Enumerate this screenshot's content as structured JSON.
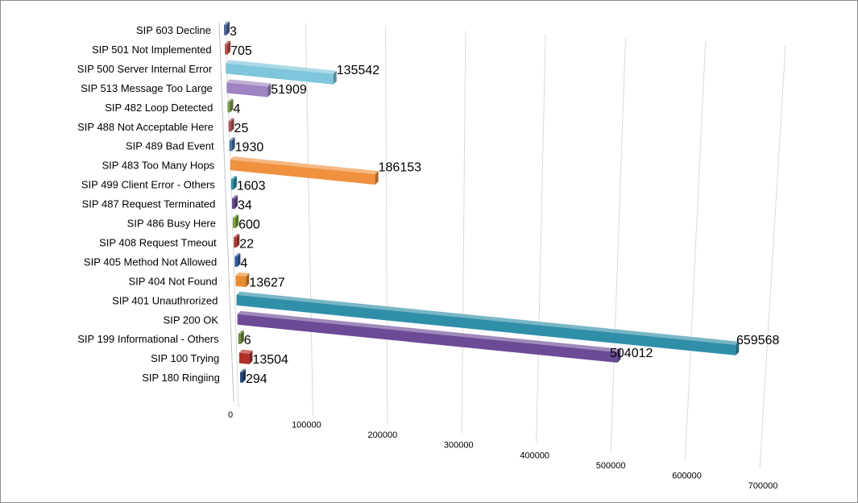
{
  "chart_data": {
    "type": "bar",
    "orientation": "horizontal",
    "style": "3d-perspective",
    "title": "",
    "xlabel": "",
    "ylabel": "",
    "xlim": [
      0,
      700000
    ],
    "x_ticks": [
      0,
      100000,
      200000,
      300000,
      400000,
      500000,
      600000,
      700000
    ],
    "x_tick_labels": [
      "0",
      "100000",
      "200000",
      "300000",
      "400000",
      "500000",
      "600000",
      "700000"
    ],
    "grid": true,
    "legend": "none",
    "categories": [
      "SIP 603 Decline",
      "SIP 501 Not Implemented",
      "SIP 500 Server Internal Error",
      "SIP 513 Message Too Large",
      "SIP 482 Loop Detected",
      "SIP 488 Not Acceptable Here",
      "SIP 489 Bad Event",
      "SIP 483 Too Many Hops",
      "SIP 499 Client Error - Others",
      "SIP 487 Request Terminated",
      "SIP 486 Busy Here",
      "SIP 408 Request Tmeout",
      "SIP 405 Method Not Allowed",
      "SIP 404 Not Found",
      "SIP 401 Unauthrorized",
      "SIP 200 OK",
      "SIP 199 Informational - Others",
      "SIP 100 Trying",
      "SIP 180 Ringiing"
    ],
    "values": [
      3,
      705,
      135542,
      51909,
      4,
      25,
      1930,
      186153,
      1603,
      34,
      600,
      22,
      4,
      13627,
      659568,
      504012,
      6,
      13504,
      294
    ],
    "value_labels": [
      "3",
      "705",
      "135542",
      "51909",
      "4",
      "25",
      "1930",
      "186153",
      "1603",
      "34",
      "600",
      "22",
      "4",
      "13627",
      "659568",
      "504012",
      "6",
      "13504",
      "294"
    ],
    "colors": [
      "#4f6b9c",
      "#c0504d",
      "#7fc5dc",
      "#9e84c2",
      "#7d9a4e",
      "#b05a57",
      "#4a73a8",
      "#f0913f",
      "#2e8fa6",
      "#6a4b93",
      "#7aa03e",
      "#b33a36",
      "#2f5fa5",
      "#e88c2e",
      "#2f8fa8",
      "#6b4b96",
      "#6c8f3c",
      "#b0302c",
      "#28497c"
    ]
  }
}
